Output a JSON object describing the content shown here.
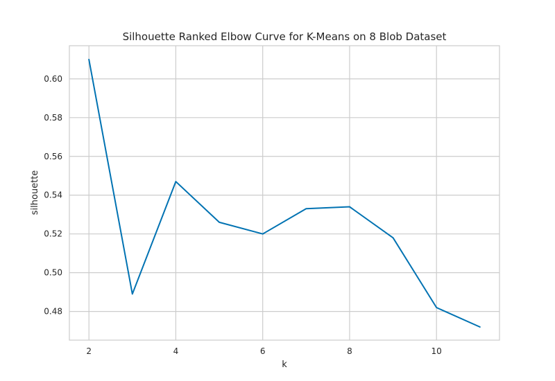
{
  "chart_data": {
    "type": "line",
    "title": "Silhouette Ranked Elbow Curve for K-Means on 8 Blob Dataset",
    "xlabel": "k",
    "ylabel": "silhouette",
    "xlim": [
      1.55,
      11.45
    ],
    "ylim": [
      0.4652,
      0.6171
    ],
    "xticks": [
      2,
      4,
      6,
      8,
      10
    ],
    "yticks": [
      0.48,
      0.5,
      0.52,
      0.54,
      0.56,
      0.58,
      0.6
    ],
    "ytick_labels": [
      "0.48",
      "0.50",
      "0.52",
      "0.54",
      "0.56",
      "0.58",
      "0.60"
    ],
    "xtick_labels": [
      "2",
      "4",
      "6",
      "8",
      "10"
    ],
    "grid": true,
    "series": [
      {
        "color": "#0072b2",
        "x": [
          2,
          3,
          4,
          5,
          6,
          7,
          8,
          9,
          10,
          11
        ],
        "y": [
          0.61,
          0.489,
          0.547,
          0.526,
          0.52,
          0.533,
          0.534,
          0.518,
          0.482,
          0.472
        ]
      }
    ]
  }
}
